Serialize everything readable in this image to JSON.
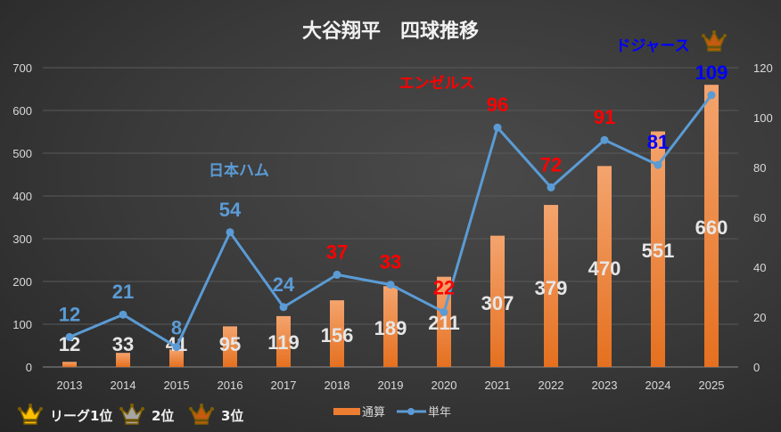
{
  "chart_data": {
    "type": "bar+line",
    "title": "大谷翔平　四球推移",
    "categories": [
      "2013",
      "2014",
      "2015",
      "2016",
      "2017",
      "2018",
      "2019",
      "2020",
      "2021",
      "2022",
      "2023",
      "2024",
      "2025"
    ],
    "series": [
      {
        "name": "通算",
        "type": "bar",
        "axis": "left",
        "color": "#ed7d31",
        "values": [
          12,
          33,
          41,
          95,
          119,
          156,
          189,
          211,
          307,
          379,
          470,
          551,
          660
        ]
      },
      {
        "name": "単年",
        "type": "line",
        "axis": "right",
        "color": "#5b9bd5",
        "values": [
          12,
          21,
          8,
          54,
          24,
          37,
          33,
          22,
          96,
          72,
          91,
          81,
          109
        ]
      }
    ],
    "single_label_colors": [
      "#5b9bd5",
      "#5b9bd5",
      "#5b9bd5",
      "#5b9bd5",
      "#5b9bd5",
      "#ff0000",
      "#ff0000",
      "#ff0000",
      "#ff0000",
      "#ff0000",
      "#ff0000",
      "#0000ff",
      "#0000ff"
    ],
    "y_left": {
      "min": 0,
      "max": 700,
      "ticks": [
        0,
        100,
        200,
        300,
        400,
        500,
        600,
        700
      ]
    },
    "y_right": {
      "min": 0,
      "max": 120,
      "ticks": [
        0,
        20,
        40,
        60,
        80,
        100,
        120
      ]
    },
    "grid": true,
    "legend_position": "bottom",
    "annotations": [
      {
        "text": "日本ハム",
        "color": "#5b9bd5"
      },
      {
        "text": "エンゼルス",
        "color": "#ff0000"
      },
      {
        "text": "ドジャース",
        "color": "#0000ff"
      }
    ],
    "rank_legend": [
      {
        "label": "リーグ1位",
        "color": "#ffc000"
      },
      {
        "label": "2位",
        "color": "#a6a6a6"
      },
      {
        "label": "3位",
        "color": "#c55a11"
      }
    ]
  }
}
